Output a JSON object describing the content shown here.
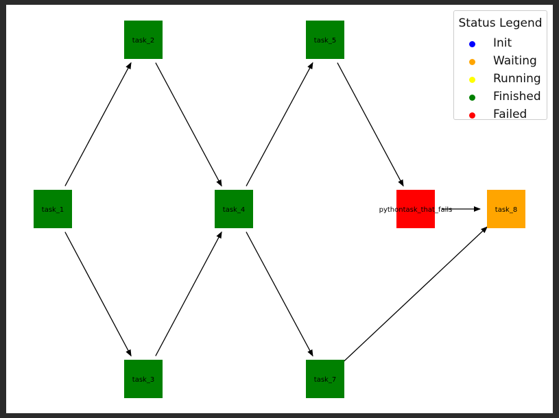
{
  "diagram": {
    "nodes": [
      {
        "id": "task_1",
        "label": "task_1",
        "status": "Finished"
      },
      {
        "id": "task_2",
        "label": "task_2",
        "status": "Finished"
      },
      {
        "id": "task_3",
        "label": "task_3",
        "status": "Finished"
      },
      {
        "id": "task_4",
        "label": "task_4",
        "status": "Finished"
      },
      {
        "id": "task_5",
        "label": "task_5",
        "status": "Finished"
      },
      {
        "id": "task_7",
        "label": "task_7",
        "status": "Finished"
      },
      {
        "id": "pythontask_that_fails",
        "label": "pythontask_that_fails",
        "status": "Failed"
      },
      {
        "id": "task_8",
        "label": "task_8",
        "status": "Waiting"
      }
    ],
    "edges": [
      {
        "from": "task_1",
        "to": "task_2"
      },
      {
        "from": "task_1",
        "to": "task_3"
      },
      {
        "from": "task_2",
        "to": "task_4"
      },
      {
        "from": "task_3",
        "to": "task_4"
      },
      {
        "from": "task_4",
        "to": "task_5"
      },
      {
        "from": "task_4",
        "to": "task_7"
      },
      {
        "from": "task_5",
        "to": "pythontask_that_fails"
      },
      {
        "from": "pythontask_that_fails",
        "to": "task_8"
      },
      {
        "from": "task_7",
        "to": "task_8"
      }
    ]
  },
  "legend": {
    "title": "Status Legend",
    "items": [
      {
        "label": "Init",
        "color": "#0000ff"
      },
      {
        "label": "Waiting",
        "color": "#ffa500"
      },
      {
        "label": "Running",
        "color": "#ffff00"
      },
      {
        "label": "Finished",
        "color": "#008000"
      },
      {
        "label": "Failed",
        "color": "#ff0000"
      }
    ]
  }
}
